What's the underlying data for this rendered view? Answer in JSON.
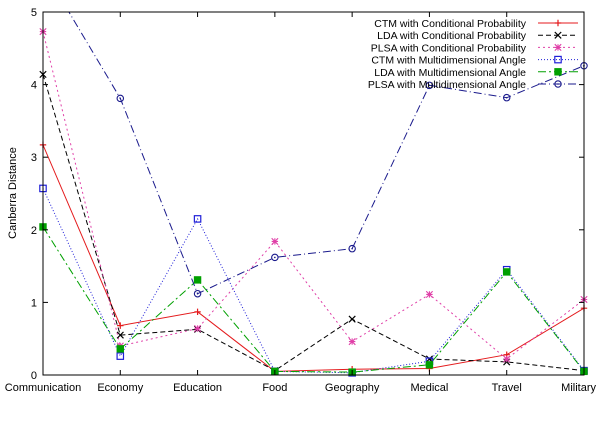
{
  "chart_data": {
    "type": "line",
    "categories": [
      "Communication",
      "Economy",
      "Education",
      "Food",
      "Geography",
      "Medical",
      "Travel",
      "Military"
    ],
    "ylabel": "Canberra Distance",
    "xlabel": "",
    "ylim": [
      0,
      5
    ],
    "yticks": [
      0,
      1,
      2,
      3,
      4,
      5
    ],
    "legend_position": "top-right",
    "series": [
      {
        "name": "CTM with Conditional Probability",
        "color": "#e41a1c",
        "dash": "",
        "marker": "plus",
        "values": [
          3.17,
          0.68,
          0.87,
          0.05,
          0.08,
          0.09,
          0.28,
          0.92
        ]
      },
      {
        "name": "LDA with Conditional Probability",
        "color": "#000000",
        "dash": "5,3",
        "marker": "x",
        "values": [
          4.14,
          0.55,
          0.63,
          0.06,
          0.77,
          0.22,
          0.18,
          0.06
        ]
      },
      {
        "name": "PLSA with Conditional Probability",
        "color": "#e040a8",
        "dash": "2,3",
        "marker": "star",
        "values": [
          4.73,
          0.4,
          0.64,
          1.84,
          0.46,
          1.11,
          0.22,
          1.04
        ]
      },
      {
        "name": "CTM with Multidimensional Angle",
        "color": "#1f1fd8",
        "dash": "1,2",
        "marker": "square-open",
        "values": [
          2.57,
          0.26,
          2.15,
          0.05,
          0.03,
          0.19,
          1.45,
          0.06
        ]
      },
      {
        "name": "LDA with Multidimensional Angle",
        "color": "#00a000",
        "dash": "8,3,2,3",
        "marker": "square-filled",
        "values": [
          2.04,
          0.36,
          1.31,
          0.05,
          0.04,
          0.14,
          1.42,
          0.05
        ]
      },
      {
        "name": "PLSA with Multidimensional Angle",
        "color": "#1a1a8c",
        "dash": "8,3,1,3",
        "marker": "circle-open",
        "values": [
          5.6,
          3.81,
          1.12,
          1.62,
          1.74,
          3.99,
          3.82,
          4.26
        ]
      }
    ]
  }
}
